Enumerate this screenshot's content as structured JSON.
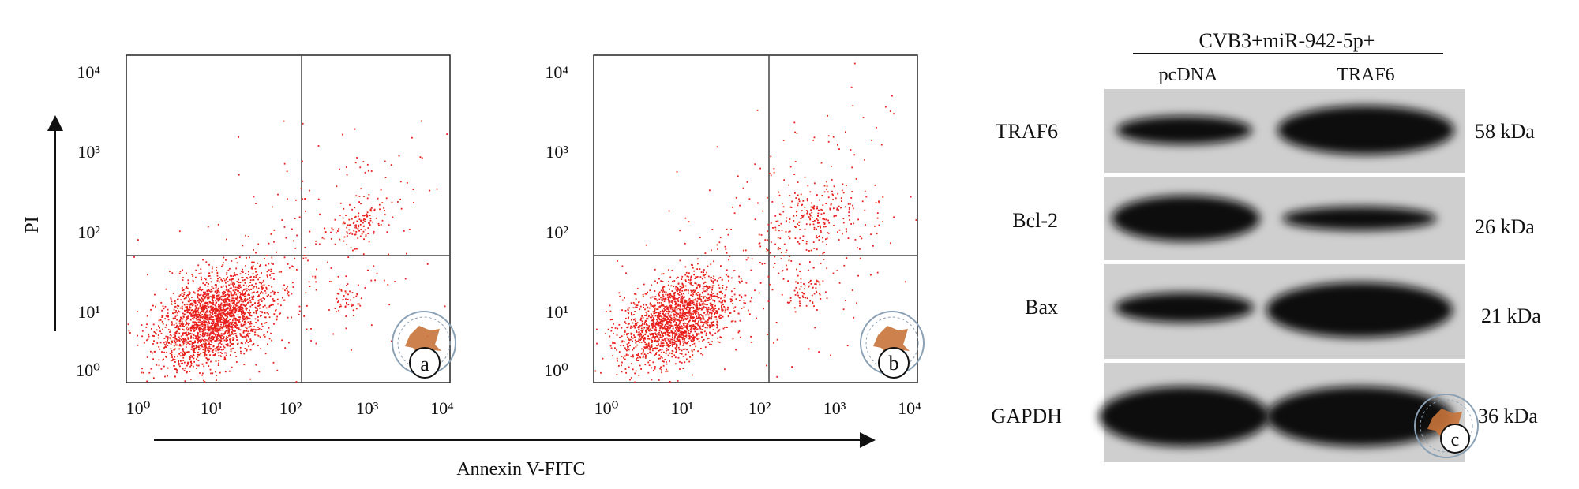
{
  "figure": {
    "flow": {
      "axis_x_label": "Annexin V-FITC",
      "axis_y_label": "PI",
      "tick_labels": [
        "10⁰",
        "10¹",
        "10²",
        "10³",
        "10⁴"
      ],
      "panels": [
        {
          "letter": "a"
        },
        {
          "letter": "b"
        }
      ]
    },
    "blot": {
      "header": "CVB3+miR-942-5p+",
      "lanes": [
        "pcDNA",
        "TRAF6"
      ],
      "rows": [
        {
          "protein": "TRAF6",
          "size": "58 kDa"
        },
        {
          "protein": "Bcl-2",
          "size": "26 kDa"
        },
        {
          "protein": "Bax",
          "size": "21 kDa"
        },
        {
          "protein": "GAPDH",
          "size": "36 kDa"
        }
      ],
      "letter": "c"
    },
    "colors": {
      "dots": "#e8201c",
      "blot_bg": "#cfcfcf",
      "band": "#0b0b0b",
      "seal": "#c8733a"
    }
  },
  "chart_data": [
    {
      "type": "scatter",
      "panel": "a",
      "xlabel": "Annexin V-FITC",
      "ylabel": "PI",
      "log_scale": true,
      "xlim": [
        1,
        10000
      ],
      "ylim": [
        1,
        10000
      ],
      "quadrant_gate": {
        "x": 150,
        "y": 30
      },
      "clusters": [
        {
          "center": [
            12,
            6
          ],
          "n": 2200,
          "spread": 0.35
        },
        {
          "center": [
            800,
            90
          ],
          "n": 110,
          "spread": 0.16
        },
        {
          "center": [
            500,
            10
          ],
          "n": 45,
          "spread": 0.12
        },
        {
          "center": [
            200,
            40
          ],
          "n": 240,
          "spread": 0.9
        }
      ]
    },
    {
      "type": "scatter",
      "panel": "b",
      "xlabel": "Annexin V-FITC",
      "ylabel": "PI",
      "log_scale": true,
      "xlim": [
        1,
        10000
      ],
      "ylim": [
        1,
        10000
      ],
      "quadrant_gate": {
        "x": 150,
        "y": 30
      },
      "clusters": [
        {
          "center": [
            10,
            6
          ],
          "n": 1800,
          "spread": 0.33
        },
        {
          "center": [
            500,
            100
          ],
          "n": 200,
          "spread": 0.28
        },
        {
          "center": [
            400,
            12
          ],
          "n": 60,
          "spread": 0.16
        },
        {
          "center": [
            300,
            60
          ],
          "n": 300,
          "spread": 0.9
        }
      ]
    },
    {
      "type": "table",
      "panel": "c",
      "title": "CVB3+miR-942-5p+",
      "columns": [
        "pcDNA",
        "TRAF6"
      ],
      "rows": [
        "TRAF6",
        "Bcl-2",
        "Bax",
        "GAPDH"
      ],
      "relative_band_intensity": [
        [
          0.6,
          1.0
        ],
        [
          0.9,
          0.55
        ],
        [
          0.6,
          1.0
        ],
        [
          1.0,
          1.0
        ]
      ]
    }
  ]
}
